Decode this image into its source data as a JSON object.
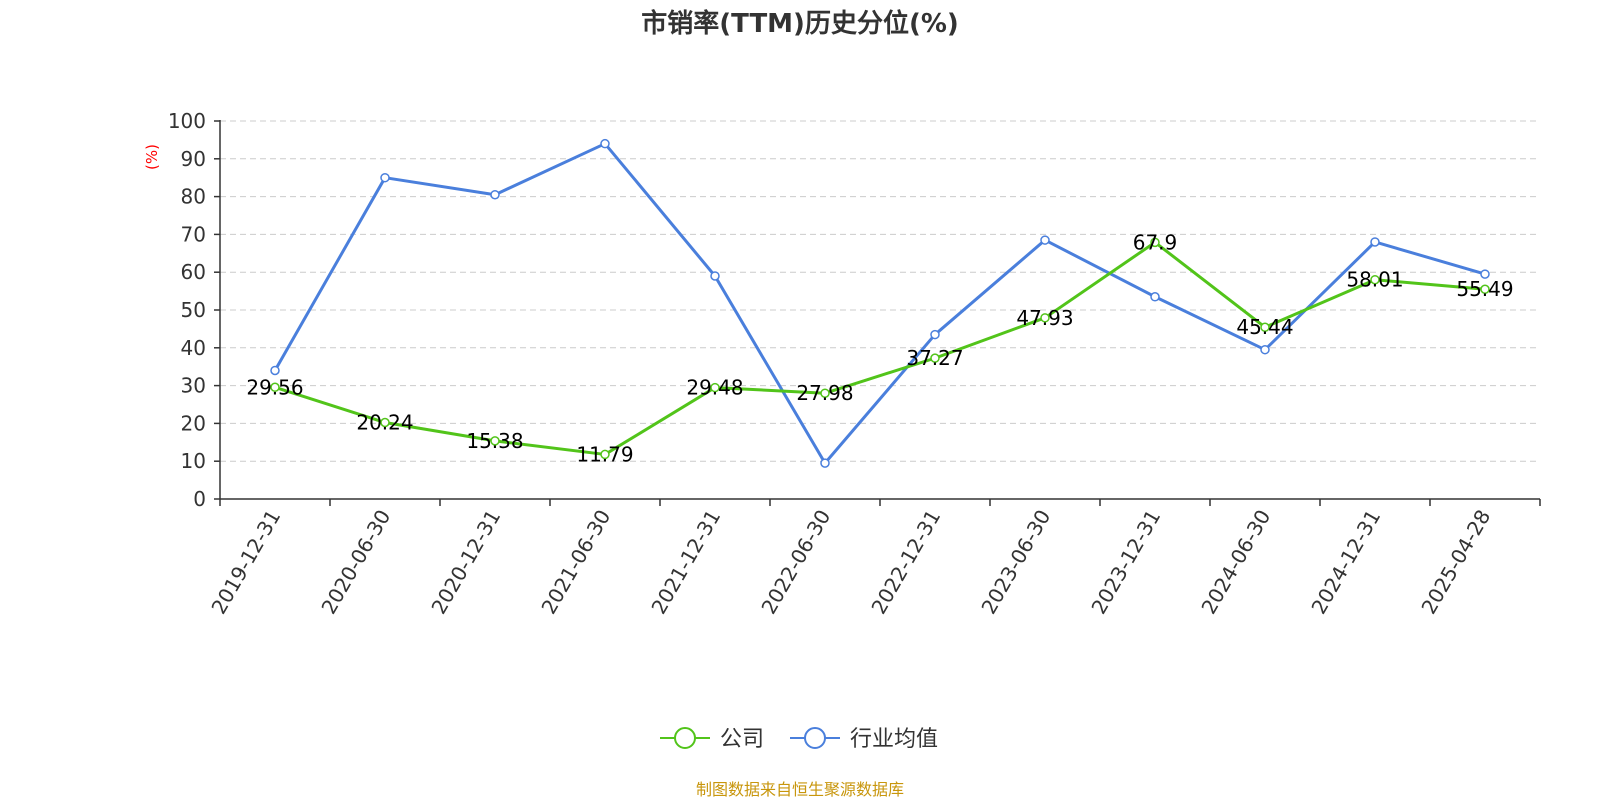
{
  "colors": {
    "company": "#52c41a",
    "industry": "#4a7fdc",
    "ylabel": "#ff0000",
    "source": "#c8960c",
    "grid": "#cccccc",
    "axis": "#333333"
  },
  "source_text": "制图数据来自恒生聚源数据库",
  "chart_data": {
    "type": "line",
    "title": "市销率(TTM)历史分位(%)",
    "ylabel": "(%)",
    "xlabel": "",
    "ylim": [
      0,
      100
    ],
    "yticks": [
      0,
      10,
      20,
      30,
      40,
      50,
      60,
      70,
      80,
      90,
      100
    ],
    "grid": true,
    "legend_position": "bottom-center",
    "categories": [
      "2019-12-31",
      "2020-06-30",
      "2020-12-31",
      "2021-06-30",
      "2021-12-31",
      "2022-06-30",
      "2022-12-31",
      "2023-06-30",
      "2023-12-31",
      "2024-06-30",
      "2024-12-31",
      "2025-04-28"
    ],
    "series": [
      {
        "name": "公司",
        "color": "#52c41a",
        "values": [
          29.56,
          20.24,
          15.38,
          11.79,
          29.48,
          27.98,
          37.27,
          47.93,
          67.9,
          45.44,
          58.01,
          55.49
        ],
        "data_labels": [
          "29.56",
          "20.24",
          "15.38",
          "11.79",
          "29.48",
          "27.98",
          "37.27",
          "47.93",
          "67.9",
          "45.44",
          "58.01",
          "55.49"
        ]
      },
      {
        "name": "行业均值",
        "color": "#4a7fdc",
        "values": [
          34,
          85,
          80.5,
          94,
          59,
          9.5,
          43.5,
          68.5,
          53.5,
          39.5,
          68,
          59.5
        ]
      }
    ]
  }
}
